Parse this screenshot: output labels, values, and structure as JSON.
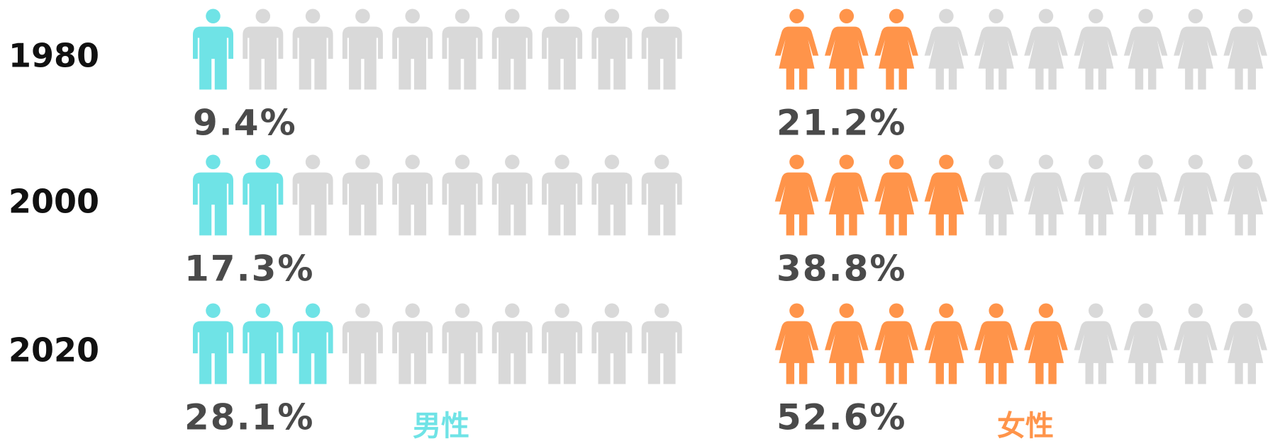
{
  "chart_data": {
    "type": "pictograph",
    "categories": [
      "1980",
      "2000",
      "2020"
    ],
    "series": [
      {
        "name": "男性",
        "color": "#6fe3e6",
        "values": [
          9.4,
          17.3,
          28.1
        ],
        "value_labels": [
          "9.4%",
          "17.3%",
          "28.1%"
        ]
      },
      {
        "name": "女性",
        "color": "#ff944a",
        "values": [
          21.2,
          38.8,
          52.6
        ],
        "value_labels": [
          "21.2%",
          "38.8%",
          "52.6%"
        ]
      }
    ],
    "empty_color": "#d9d9d9"
  }
}
